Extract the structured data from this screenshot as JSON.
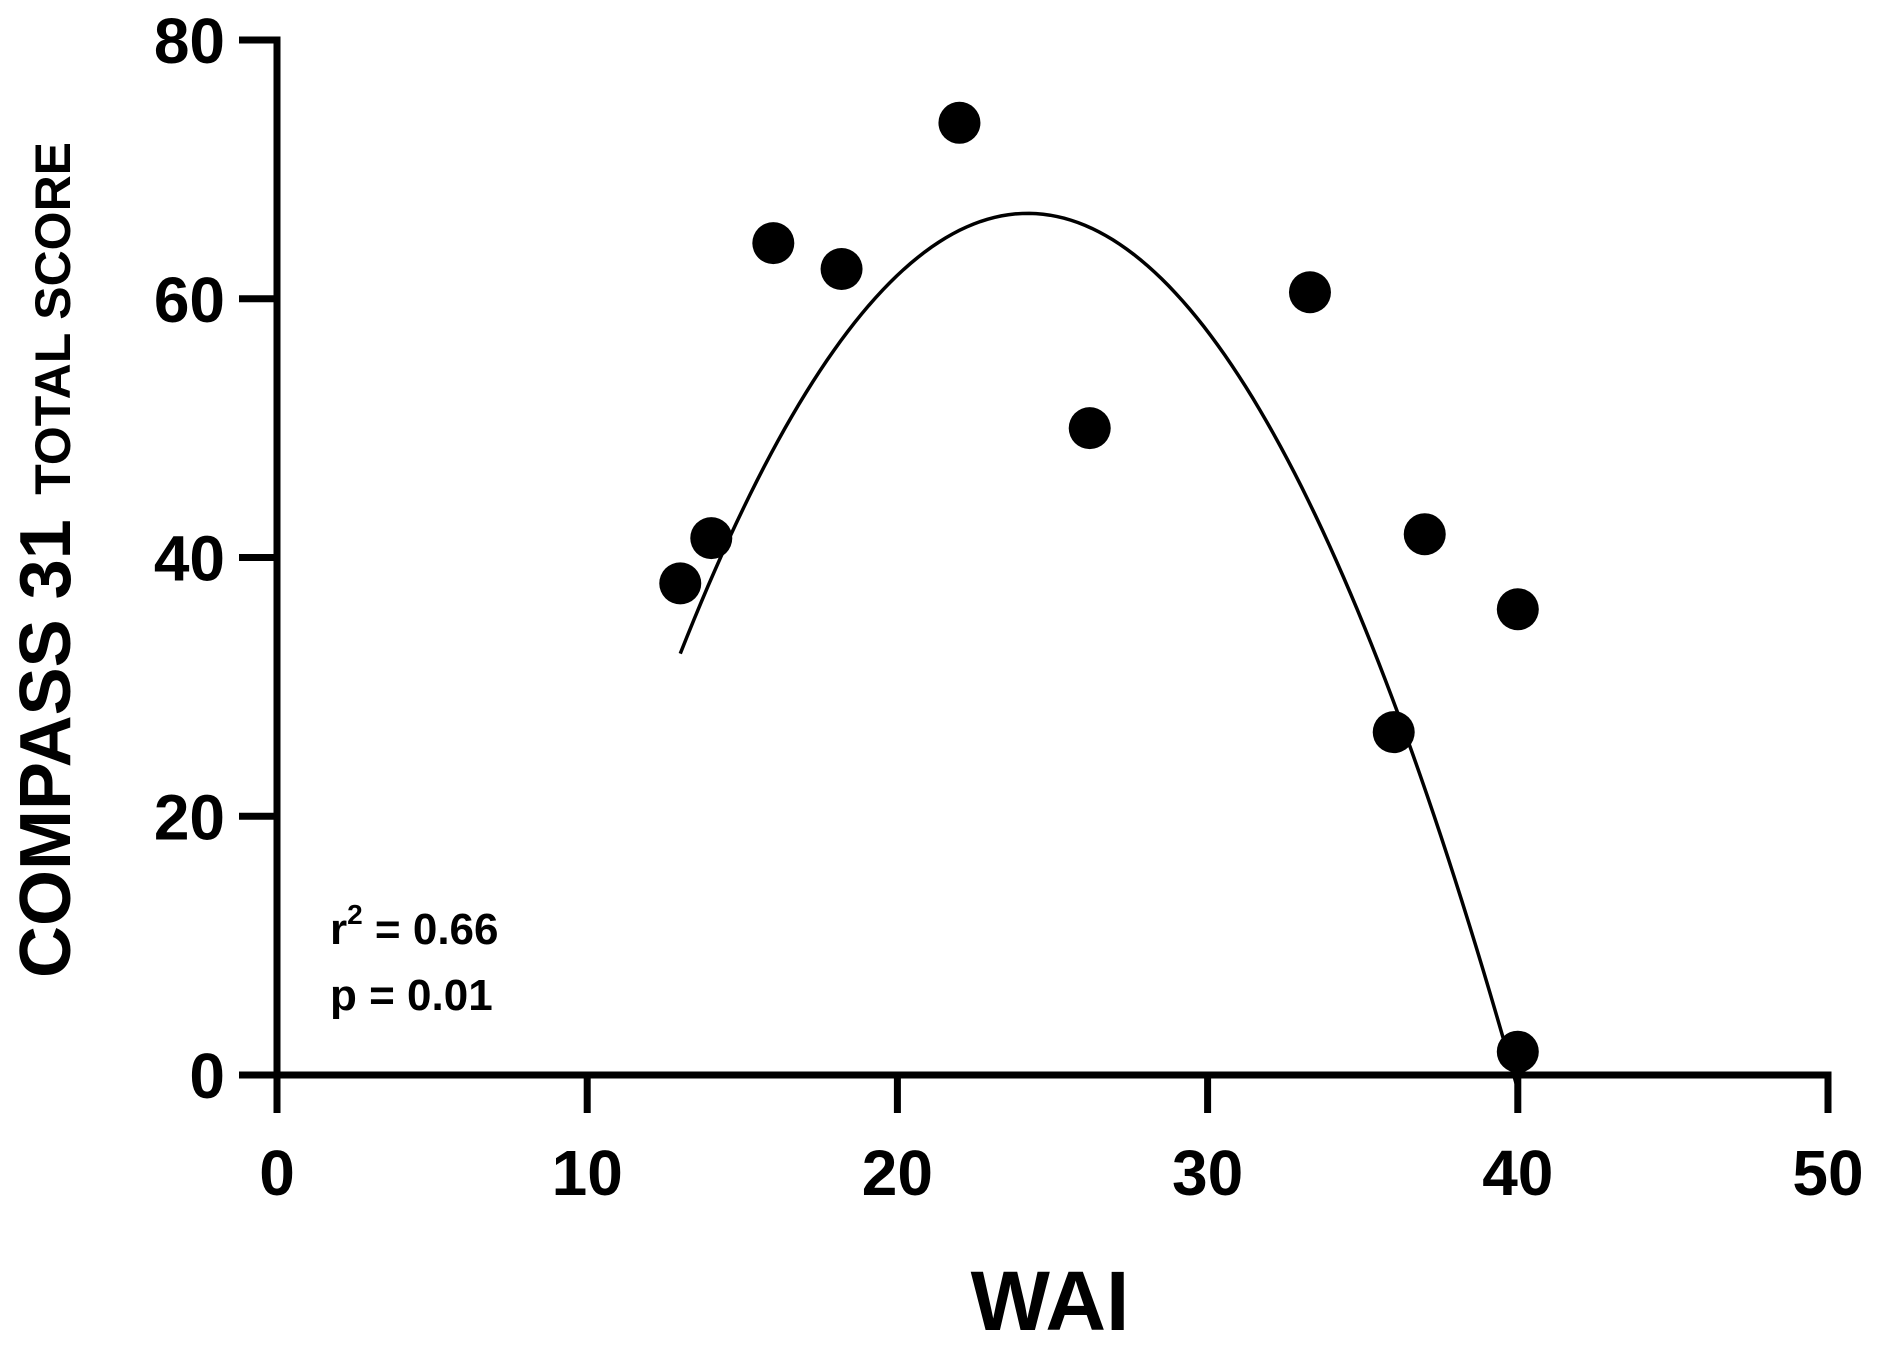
{
  "chart_data": {
    "type": "scatter",
    "title": "",
    "xlabel": "WAI",
    "ylabel_main": "COMPASS 31",
    "ylabel_sub": "TOTAL SCORE",
    "xlim": [
      0,
      50
    ],
    "ylim": [
      0,
      80
    ],
    "x_ticks": [
      0,
      10,
      20,
      30,
      40,
      50
    ],
    "y_ticks": [
      0,
      20,
      40,
      60,
      80
    ],
    "grid": false,
    "legend": "none",
    "points": [
      {
        "x": 13,
        "y": 38
      },
      {
        "x": 14,
        "y": 41.5
      },
      {
        "x": 16,
        "y": 64.3
      },
      {
        "x": 18.2,
        "y": 62.3
      },
      {
        "x": 22,
        "y": 73.6
      },
      {
        "x": 26.2,
        "y": 50
      },
      {
        "x": 33.3,
        "y": 60.5
      },
      {
        "x": 36,
        "y": 26.5
      },
      {
        "x": 37,
        "y": 41.8
      },
      {
        "x": 40,
        "y": 36
      },
      {
        "x": 40,
        "y": 1.8
      }
    ],
    "fit": {
      "type": "quadratic",
      "x_range": [
        13,
        40
      ],
      "vertex_x": 24.2,
      "vertex_y": 66.6,
      "a": -0.2713
    },
    "annotations": {
      "r2_label": "r",
      "r2_sup": "2",
      "r2_value": " = 0.66",
      "p_text": "p = 0.01"
    },
    "colors": {
      "points": "#000000",
      "fit_line": "#000000",
      "axes": "#000000"
    }
  }
}
